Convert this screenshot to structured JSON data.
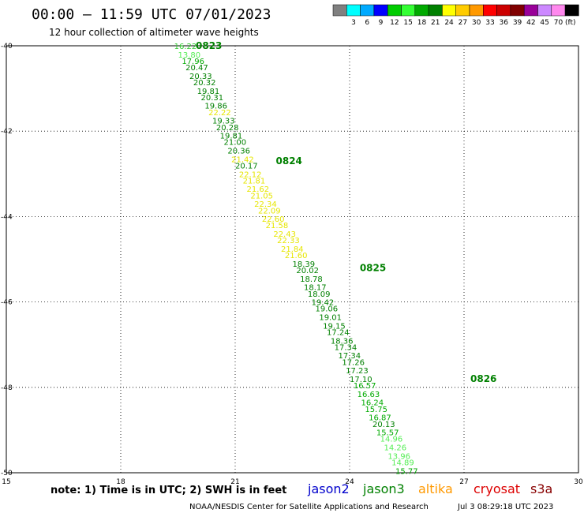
{
  "header": {
    "title": "00:00 – 11:59 UTC 07/01/2023",
    "subtitle": "12 hour collection of altimeter wave heights"
  },
  "color_scale": {
    "bins": [
      {
        "color": "#808080",
        "label": ""
      },
      {
        "color": "#00ffff",
        "label": "3"
      },
      {
        "color": "#00aaff",
        "label": "6"
      },
      {
        "color": "#0000ff",
        "label": "9"
      },
      {
        "color": "#00cc00",
        "label": "12"
      },
      {
        "color": "#33ff33",
        "label": "15"
      },
      {
        "color": "#00aa00",
        "label": "18"
      },
      {
        "color": "#008000",
        "label": "21"
      },
      {
        "color": "#ffff00",
        "label": "24"
      },
      {
        "color": "#ffcc00",
        "label": "27"
      },
      {
        "color": "#ff9900",
        "label": "30"
      },
      {
        "color": "#ff0000",
        "label": "33"
      },
      {
        "color": "#cc0000",
        "label": "36"
      },
      {
        "color": "#800000",
        "label": "39"
      },
      {
        "color": "#990099",
        "label": "42"
      },
      {
        "color": "#cc88ff",
        "label": "45"
      },
      {
        "color": "#ff88ee",
        "label": "70"
      },
      {
        "color": "#000000",
        "label": "(ft)"
      }
    ]
  },
  "footer": {
    "note": "note: 1) Time is in UTC; 2) SWH is in feet",
    "satellites": [
      {
        "name": "jason2",
        "color": "#0000cc"
      },
      {
        "name": "jason3",
        "color": "#008000"
      },
      {
        "name": "altika",
        "color": "#ff9900"
      },
      {
        "name": "cryosat",
        "color": "#dd0000"
      },
      {
        "name": "s3a",
        "color": "#880000"
      }
    ],
    "credit": "NOAA/NESDIS Center for Satellite Applications and Research",
    "timestamp": "Jul  3 08:29:18 UTC 2023"
  },
  "chart_data": {
    "type": "scatter",
    "xlim": [
      15,
      30
    ],
    "ylim": [
      -50,
      -40
    ],
    "x_ticks": [
      15,
      18,
      21,
      24,
      27,
      30
    ],
    "y_ticks": [
      -40,
      -42,
      -44,
      -46,
      -48,
      -50
    ],
    "grid": true,
    "pass_labels": [
      {
        "text": "0823",
        "x": 19.8,
        "y": -40.0
      },
      {
        "text": "0824",
        "x": 21.9,
        "y": -42.7
      },
      {
        "text": "0825",
        "x": 24.1,
        "y": -45.2
      },
      {
        "text": "0826",
        "x": 27.0,
        "y": -47.8
      }
    ],
    "points": [
      {
        "x": 19.4,
        "y": -40.0,
        "v": "16.22",
        "c": "#33cc33"
      },
      {
        "x": 19.5,
        "y": -40.2,
        "v": "13.80",
        "c": "#55ee55"
      },
      {
        "x": 19.6,
        "y": -40.35,
        "v": "17.96",
        "c": "#00aa00"
      },
      {
        "x": 19.7,
        "y": -40.5,
        "v": "20.47",
        "c": "#008000"
      },
      {
        "x": 19.8,
        "y": -40.7,
        "v": "20.33",
        "c": "#008000"
      },
      {
        "x": 19.9,
        "y": -40.85,
        "v": "20.32",
        "c": "#008000"
      },
      {
        "x": 20.0,
        "y": -41.05,
        "v": "19.81",
        "c": "#008000"
      },
      {
        "x": 20.1,
        "y": -41.2,
        "v": "20.31",
        "c": "#008000"
      },
      {
        "x": 20.2,
        "y": -41.4,
        "v": "19.86",
        "c": "#008000"
      },
      {
        "x": 20.3,
        "y": -41.55,
        "v": "22.22",
        "c": "#e6e600"
      },
      {
        "x": 20.4,
        "y": -41.75,
        "v": "19.33",
        "c": "#008000"
      },
      {
        "x": 20.5,
        "y": -41.9,
        "v": "20.28",
        "c": "#008000"
      },
      {
        "x": 20.6,
        "y": -42.1,
        "v": "19.81",
        "c": "#008000"
      },
      {
        "x": 20.7,
        "y": -42.25,
        "v": "21.00",
        "c": "#008000"
      },
      {
        "x": 20.8,
        "y": -42.45,
        "v": "20.36",
        "c": "#008000"
      },
      {
        "x": 20.9,
        "y": -42.65,
        "v": "21.42",
        "c": "#e6e600"
      },
      {
        "x": 21.0,
        "y": -42.8,
        "v": "20.17",
        "c": "#008000"
      },
      {
        "x": 21.1,
        "y": -43.0,
        "v": "22.12",
        "c": "#e6e600"
      },
      {
        "x": 21.2,
        "y": -43.15,
        "v": "21.81",
        "c": "#e6e600"
      },
      {
        "x": 21.3,
        "y": -43.35,
        "v": "21.62",
        "c": "#e6e600"
      },
      {
        "x": 21.4,
        "y": -43.5,
        "v": "21.05",
        "c": "#e6e600"
      },
      {
        "x": 21.5,
        "y": -43.7,
        "v": "22.34",
        "c": "#e6e600"
      },
      {
        "x": 21.6,
        "y": -43.85,
        "v": "22.09",
        "c": "#e6e600"
      },
      {
        "x": 21.7,
        "y": -44.05,
        "v": "22.60",
        "c": "#e6e600"
      },
      {
        "x": 21.8,
        "y": -44.2,
        "v": "21.58",
        "c": "#e6e600"
      },
      {
        "x": 22.0,
        "y": -44.4,
        "v": "22.43",
        "c": "#e6e600"
      },
      {
        "x": 22.1,
        "y": -44.55,
        "v": "22.33",
        "c": "#e6e600"
      },
      {
        "x": 22.2,
        "y": -44.75,
        "v": "21.84",
        "c": "#e6e600"
      },
      {
        "x": 22.3,
        "y": -44.9,
        "v": "21.60",
        "c": "#e6e600"
      },
      {
        "x": 22.5,
        "y": -45.1,
        "v": "18.39",
        "c": "#008000"
      },
      {
        "x": 22.6,
        "y": -45.25,
        "v": "20.02",
        "c": "#008000"
      },
      {
        "x": 22.7,
        "y": -45.45,
        "v": "18.78",
        "c": "#008000"
      },
      {
        "x": 22.8,
        "y": -45.65,
        "v": "18.17",
        "c": "#008000"
      },
      {
        "x": 22.9,
        "y": -45.8,
        "v": "18.09",
        "c": "#008000"
      },
      {
        "x": 23.0,
        "y": -46.0,
        "v": "19.42",
        "c": "#008000"
      },
      {
        "x": 23.1,
        "y": -46.15,
        "v": "19.06",
        "c": "#008000"
      },
      {
        "x": 23.2,
        "y": -46.35,
        "v": "19.01",
        "c": "#008000"
      },
      {
        "x": 23.3,
        "y": -46.55,
        "v": "19.15",
        "c": "#008000"
      },
      {
        "x": 23.4,
        "y": -46.7,
        "v": "17.24",
        "c": "#008000"
      },
      {
        "x": 23.5,
        "y": -46.9,
        "v": "18.36",
        "c": "#008000"
      },
      {
        "x": 23.6,
        "y": -47.05,
        "v": "17.34",
        "c": "#008000"
      },
      {
        "x": 23.7,
        "y": -47.25,
        "v": "17.34",
        "c": "#008000"
      },
      {
        "x": 23.8,
        "y": -47.4,
        "v": "17.26",
        "c": "#008000"
      },
      {
        "x": 23.9,
        "y": -47.6,
        "v": "17.23",
        "c": "#008000"
      },
      {
        "x": 24.0,
        "y": -47.8,
        "v": "17.10",
        "c": "#008000"
      },
      {
        "x": 24.1,
        "y": -47.95,
        "v": "16.57",
        "c": "#00aa00"
      },
      {
        "x": 24.2,
        "y": -48.15,
        "v": "16.63",
        "c": "#00aa00"
      },
      {
        "x": 24.3,
        "y": -48.35,
        "v": "16.24",
        "c": "#00aa00"
      },
      {
        "x": 24.4,
        "y": -48.5,
        "v": "15.75",
        "c": "#00aa00"
      },
      {
        "x": 24.5,
        "y": -48.7,
        "v": "16.87",
        "c": "#00aa00"
      },
      {
        "x": 24.6,
        "y": -48.85,
        "v": "20.13",
        "c": "#008000"
      },
      {
        "x": 24.7,
        "y": -49.05,
        "v": "15.57",
        "c": "#00aa00"
      },
      {
        "x": 24.8,
        "y": -49.2,
        "v": "14.96",
        "c": "#55ee55"
      },
      {
        "x": 24.9,
        "y": -49.4,
        "v": "14.26",
        "c": "#55ee55"
      },
      {
        "x": 25.0,
        "y": -49.6,
        "v": "13.96",
        "c": "#55ee55"
      },
      {
        "x": 25.1,
        "y": -49.75,
        "v": "14.89",
        "c": "#55ee55"
      },
      {
        "x": 25.2,
        "y": -49.95,
        "v": "15.77",
        "c": "#00aa00"
      }
    ]
  }
}
